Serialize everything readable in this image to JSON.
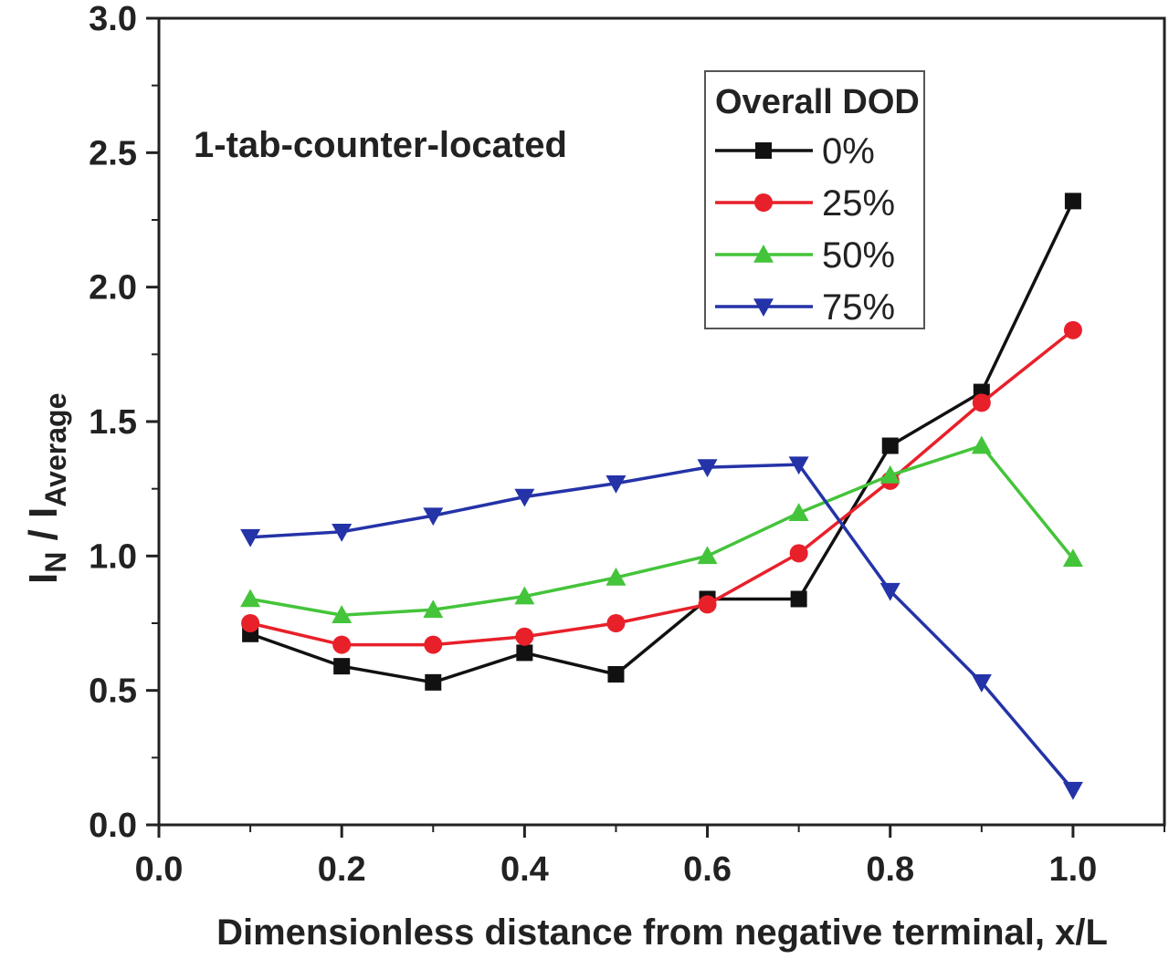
{
  "chart_data": {
    "type": "line",
    "title": "",
    "annotation": "1-tab-counter-located",
    "xlabel": "Dimensionless distance from negative terminal, x/L",
    "ylabel": {
      "main1": "I",
      "sub1": "N",
      "sep": " / ",
      "main2": "I",
      "sub2": "Average"
    },
    "xlim": [
      0.0,
      1.1
    ],
    "ylim": [
      0.0,
      3.0
    ],
    "xticks": [
      "0.0",
      "0.2",
      "0.4",
      "0.6",
      "0.8",
      "1.0"
    ],
    "yticks": [
      "0.0",
      "0.5",
      "1.0",
      "1.5",
      "2.0",
      "2.5",
      "3.0"
    ],
    "x": [
      0.1,
      0.2,
      0.3,
      0.4,
      0.5,
      0.6,
      0.7,
      0.8,
      0.9,
      1.0
    ],
    "legend": {
      "title": "Overall DOD",
      "placement": "top-right"
    },
    "series": [
      {
        "name": "0%",
        "color": "#111111",
        "marker": "square",
        "values": [
          0.71,
          0.59,
          0.53,
          0.64,
          0.56,
          0.84,
          0.84,
          1.41,
          1.61,
          2.32
        ]
      },
      {
        "name": "25%",
        "color": "#e8202a",
        "marker": "circle",
        "values": [
          0.75,
          0.67,
          0.67,
          0.7,
          0.75,
          0.82,
          1.01,
          1.28,
          1.57,
          1.84
        ]
      },
      {
        "name": "50%",
        "color": "#44c43a",
        "marker": "triangle-up",
        "values": [
          0.84,
          0.78,
          0.8,
          0.85,
          0.92,
          1.0,
          1.16,
          1.3,
          1.41,
          0.99
        ]
      },
      {
        "name": "75%",
        "color": "#2433a8",
        "marker": "triangle-down",
        "values": [
          1.07,
          1.09,
          1.15,
          1.22,
          1.27,
          1.33,
          1.34,
          0.87,
          0.53,
          0.13
        ]
      }
    ]
  }
}
